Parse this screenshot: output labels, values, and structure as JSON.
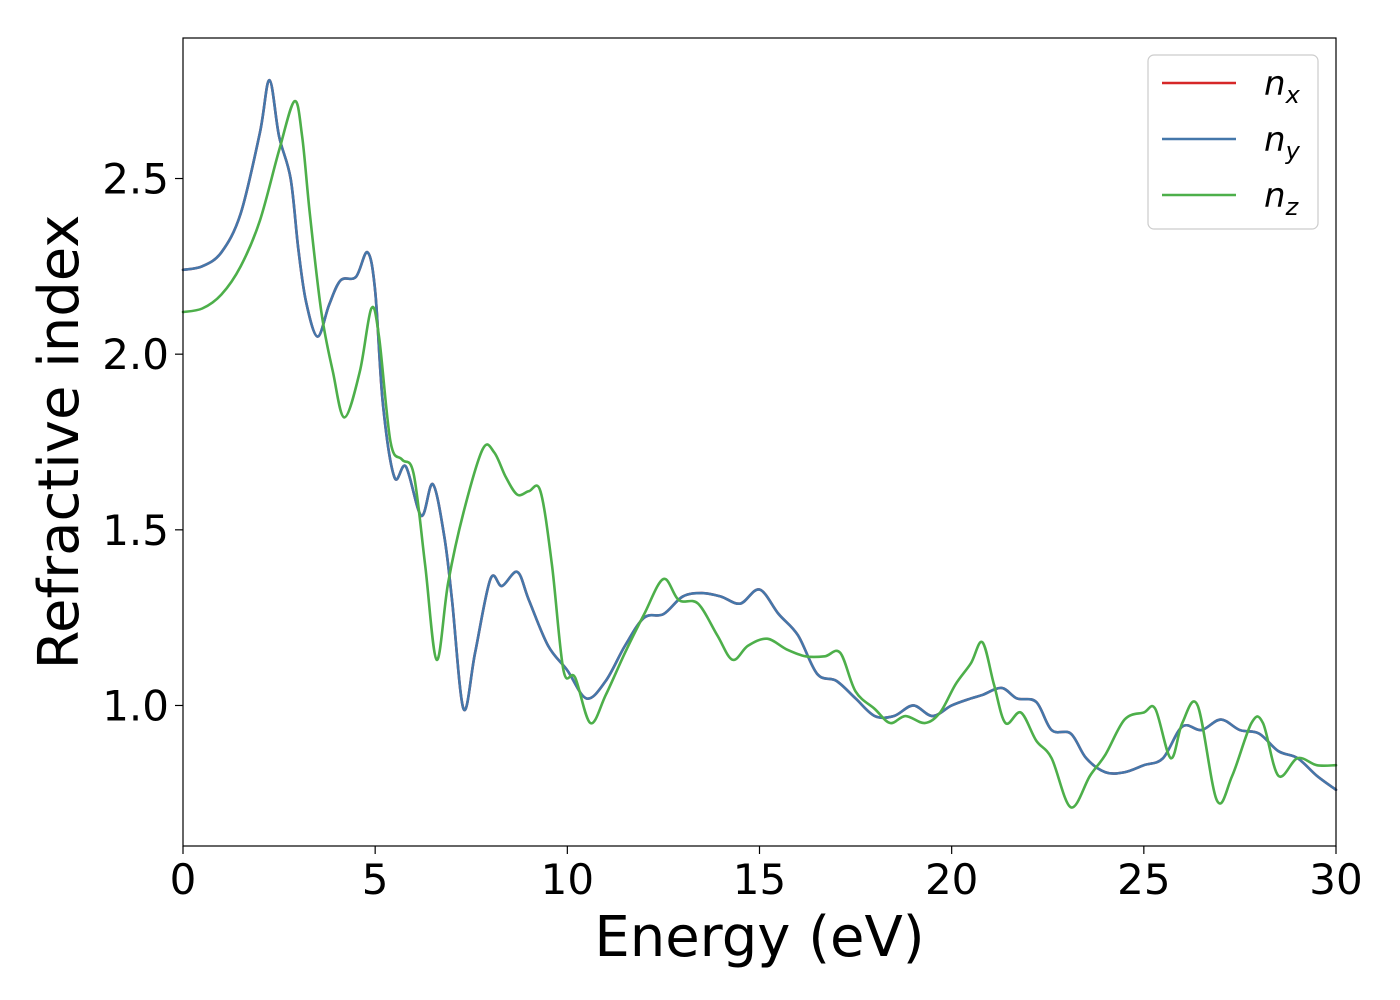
{
  "chart_data": {
    "type": "line",
    "xlabel": "Energy (eV)",
    "ylabel": "Refractive index",
    "xlim": [
      0,
      30
    ],
    "ylim": [
      0.6,
      2.9
    ],
    "x_ticks": [
      0,
      5,
      10,
      15,
      20,
      25,
      30
    ],
    "x_tick_labels": [
      "0",
      "5",
      "10",
      "15",
      "20",
      "25",
      "30"
    ],
    "y_ticks": [
      1.0,
      1.5,
      2.0,
      2.5
    ],
    "y_tick_labels": [
      "1.0",
      "1.5",
      "2.0",
      "2.5"
    ],
    "grid": false,
    "legend_position": "top-right",
    "series": [
      {
        "name": "n",
        "subscript": "x",
        "color": "#d62728",
        "points": [
          [
            0,
            2.24
          ],
          [
            0.5,
            2.25
          ],
          [
            1.0,
            2.29
          ],
          [
            1.5,
            2.4
          ],
          [
            2.0,
            2.63
          ],
          [
            2.25,
            2.78
          ],
          [
            2.5,
            2.62
          ],
          [
            2.8,
            2.5
          ],
          [
            3.0,
            2.3
          ],
          [
            3.2,
            2.15
          ],
          [
            3.5,
            2.05
          ],
          [
            3.8,
            2.14
          ],
          [
            4.1,
            2.21
          ],
          [
            4.5,
            2.22
          ],
          [
            4.8,
            2.29
          ],
          [
            5.0,
            2.18
          ],
          [
            5.2,
            1.86
          ],
          [
            5.5,
            1.65
          ],
          [
            5.8,
            1.68
          ],
          [
            6.2,
            1.54
          ],
          [
            6.5,
            1.63
          ],
          [
            6.8,
            1.48
          ],
          [
            7.0,
            1.3
          ],
          [
            7.3,
            0.99
          ],
          [
            7.6,
            1.15
          ],
          [
            8.0,
            1.36
          ],
          [
            8.3,
            1.34
          ],
          [
            8.7,
            1.38
          ],
          [
            9.0,
            1.3
          ],
          [
            9.5,
            1.17
          ],
          [
            10.0,
            1.1
          ],
          [
            10.5,
            1.02
          ],
          [
            11.0,
            1.07
          ],
          [
            11.5,
            1.17
          ],
          [
            12.0,
            1.25
          ],
          [
            12.5,
            1.26
          ],
          [
            13.0,
            1.31
          ],
          [
            13.5,
            1.32
          ],
          [
            14.0,
            1.31
          ],
          [
            14.5,
            1.29
          ],
          [
            15.0,
            1.33
          ],
          [
            15.5,
            1.26
          ],
          [
            16.0,
            1.2
          ],
          [
            16.5,
            1.09
          ],
          [
            17.0,
            1.07
          ],
          [
            17.5,
            1.02
          ],
          [
            18.0,
            0.97
          ],
          [
            18.5,
            0.97
          ],
          [
            19.0,
            1.0
          ],
          [
            19.5,
            0.97
          ],
          [
            20.0,
            1.0
          ],
          [
            20.5,
            1.02
          ],
          [
            20.8,
            1.03
          ],
          [
            21.3,
            1.05
          ],
          [
            21.7,
            1.02
          ],
          [
            22.2,
            1.01
          ],
          [
            22.6,
            0.93
          ],
          [
            23.1,
            0.92
          ],
          [
            23.5,
            0.85
          ],
          [
            24.0,
            0.81
          ],
          [
            24.5,
            0.81
          ],
          [
            25.0,
            0.83
          ],
          [
            25.5,
            0.85
          ],
          [
            26.0,
            0.94
          ],
          [
            26.5,
            0.93
          ],
          [
            27.0,
            0.96
          ],
          [
            27.5,
            0.93
          ],
          [
            28.0,
            0.92
          ],
          [
            28.5,
            0.87
          ],
          [
            29.0,
            0.85
          ],
          [
            29.5,
            0.8
          ],
          [
            30.0,
            0.76
          ]
        ]
      },
      {
        "name": "n",
        "subscript": "y",
        "color": "#4477aa",
        "points": [
          [
            0,
            2.24
          ],
          [
            0.5,
            2.25
          ],
          [
            1.0,
            2.29
          ],
          [
            1.5,
            2.4
          ],
          [
            2.0,
            2.63
          ],
          [
            2.25,
            2.78
          ],
          [
            2.5,
            2.62
          ],
          [
            2.8,
            2.5
          ],
          [
            3.0,
            2.3
          ],
          [
            3.2,
            2.15
          ],
          [
            3.5,
            2.05
          ],
          [
            3.8,
            2.14
          ],
          [
            4.1,
            2.21
          ],
          [
            4.5,
            2.22
          ],
          [
            4.8,
            2.29
          ],
          [
            5.0,
            2.18
          ],
          [
            5.2,
            1.86
          ],
          [
            5.5,
            1.65
          ],
          [
            5.8,
            1.68
          ],
          [
            6.2,
            1.54
          ],
          [
            6.5,
            1.63
          ],
          [
            6.8,
            1.48
          ],
          [
            7.0,
            1.3
          ],
          [
            7.3,
            0.99
          ],
          [
            7.6,
            1.15
          ],
          [
            8.0,
            1.36
          ],
          [
            8.3,
            1.34
          ],
          [
            8.7,
            1.38
          ],
          [
            9.0,
            1.3
          ],
          [
            9.5,
            1.17
          ],
          [
            10.0,
            1.1
          ],
          [
            10.5,
            1.02
          ],
          [
            11.0,
            1.07
          ],
          [
            11.5,
            1.17
          ],
          [
            12.0,
            1.25
          ],
          [
            12.5,
            1.26
          ],
          [
            13.0,
            1.31
          ],
          [
            13.5,
            1.32
          ],
          [
            14.0,
            1.31
          ],
          [
            14.5,
            1.29
          ],
          [
            15.0,
            1.33
          ],
          [
            15.5,
            1.26
          ],
          [
            16.0,
            1.2
          ],
          [
            16.5,
            1.09
          ],
          [
            17.0,
            1.07
          ],
          [
            17.5,
            1.02
          ],
          [
            18.0,
            0.97
          ],
          [
            18.5,
            0.97
          ],
          [
            19.0,
            1.0
          ],
          [
            19.5,
            0.97
          ],
          [
            20.0,
            1.0
          ],
          [
            20.5,
            1.02
          ],
          [
            20.8,
            1.03
          ],
          [
            21.3,
            1.05
          ],
          [
            21.7,
            1.02
          ],
          [
            22.2,
            1.01
          ],
          [
            22.6,
            0.93
          ],
          [
            23.1,
            0.92
          ],
          [
            23.5,
            0.85
          ],
          [
            24.0,
            0.81
          ],
          [
            24.5,
            0.81
          ],
          [
            25.0,
            0.83
          ],
          [
            25.5,
            0.85
          ],
          [
            26.0,
            0.94
          ],
          [
            26.5,
            0.93
          ],
          [
            27.0,
            0.96
          ],
          [
            27.5,
            0.93
          ],
          [
            28.0,
            0.92
          ],
          [
            28.5,
            0.87
          ],
          [
            29.0,
            0.85
          ],
          [
            29.5,
            0.8
          ],
          [
            30.0,
            0.76
          ]
        ]
      },
      {
        "name": "n",
        "subscript": "z",
        "color": "#4daf4a",
        "points": [
          [
            0,
            2.12
          ],
          [
            0.5,
            2.13
          ],
          [
            1.0,
            2.17
          ],
          [
            1.5,
            2.25
          ],
          [
            2.0,
            2.38
          ],
          [
            2.5,
            2.58
          ],
          [
            2.9,
            2.72
          ],
          [
            3.1,
            2.62
          ],
          [
            3.3,
            2.4
          ],
          [
            3.6,
            2.12
          ],
          [
            3.9,
            1.95
          ],
          [
            4.2,
            1.82
          ],
          [
            4.6,
            1.95
          ],
          [
            4.9,
            2.13
          ],
          [
            5.1,
            2.05
          ],
          [
            5.4,
            1.75
          ],
          [
            5.7,
            1.7
          ],
          [
            6.0,
            1.66
          ],
          [
            6.3,
            1.4
          ],
          [
            6.6,
            1.13
          ],
          [
            6.9,
            1.35
          ],
          [
            7.3,
            1.55
          ],
          [
            7.8,
            1.73
          ],
          [
            8.1,
            1.72
          ],
          [
            8.4,
            1.65
          ],
          [
            8.7,
            1.6
          ],
          [
            9.0,
            1.61
          ],
          [
            9.3,
            1.61
          ],
          [
            9.6,
            1.4
          ],
          [
            9.9,
            1.1
          ],
          [
            10.2,
            1.08
          ],
          [
            10.6,
            0.95
          ],
          [
            11.0,
            1.03
          ],
          [
            11.5,
            1.15
          ],
          [
            12.0,
            1.26
          ],
          [
            12.5,
            1.36
          ],
          [
            12.9,
            1.3
          ],
          [
            13.4,
            1.29
          ],
          [
            13.9,
            1.2
          ],
          [
            14.3,
            1.13
          ],
          [
            14.7,
            1.17
          ],
          [
            15.2,
            1.19
          ],
          [
            15.7,
            1.16
          ],
          [
            16.2,
            1.14
          ],
          [
            16.7,
            1.14
          ],
          [
            17.1,
            1.15
          ],
          [
            17.5,
            1.04
          ],
          [
            18.0,
            0.99
          ],
          [
            18.4,
            0.95
          ],
          [
            18.8,
            0.97
          ],
          [
            19.3,
            0.95
          ],
          [
            19.7,
            0.98
          ],
          [
            20.1,
            1.06
          ],
          [
            20.5,
            1.12
          ],
          [
            20.8,
            1.18
          ],
          [
            21.1,
            1.06
          ],
          [
            21.4,
            0.95
          ],
          [
            21.8,
            0.98
          ],
          [
            22.2,
            0.9
          ],
          [
            22.6,
            0.85
          ],
          [
            23.1,
            0.71
          ],
          [
            23.6,
            0.8
          ],
          [
            24.0,
            0.86
          ],
          [
            24.5,
            0.96
          ],
          [
            25.0,
            0.98
          ],
          [
            25.3,
            0.99
          ],
          [
            25.7,
            0.85
          ],
          [
            26.0,
            0.95
          ],
          [
            26.4,
            1.0
          ],
          [
            26.9,
            0.73
          ],
          [
            27.3,
            0.8
          ],
          [
            27.8,
            0.95
          ],
          [
            28.1,
            0.95
          ],
          [
            28.5,
            0.8
          ],
          [
            29.0,
            0.85
          ],
          [
            29.5,
            0.83
          ],
          [
            30.0,
            0.83
          ]
        ]
      }
    ]
  }
}
